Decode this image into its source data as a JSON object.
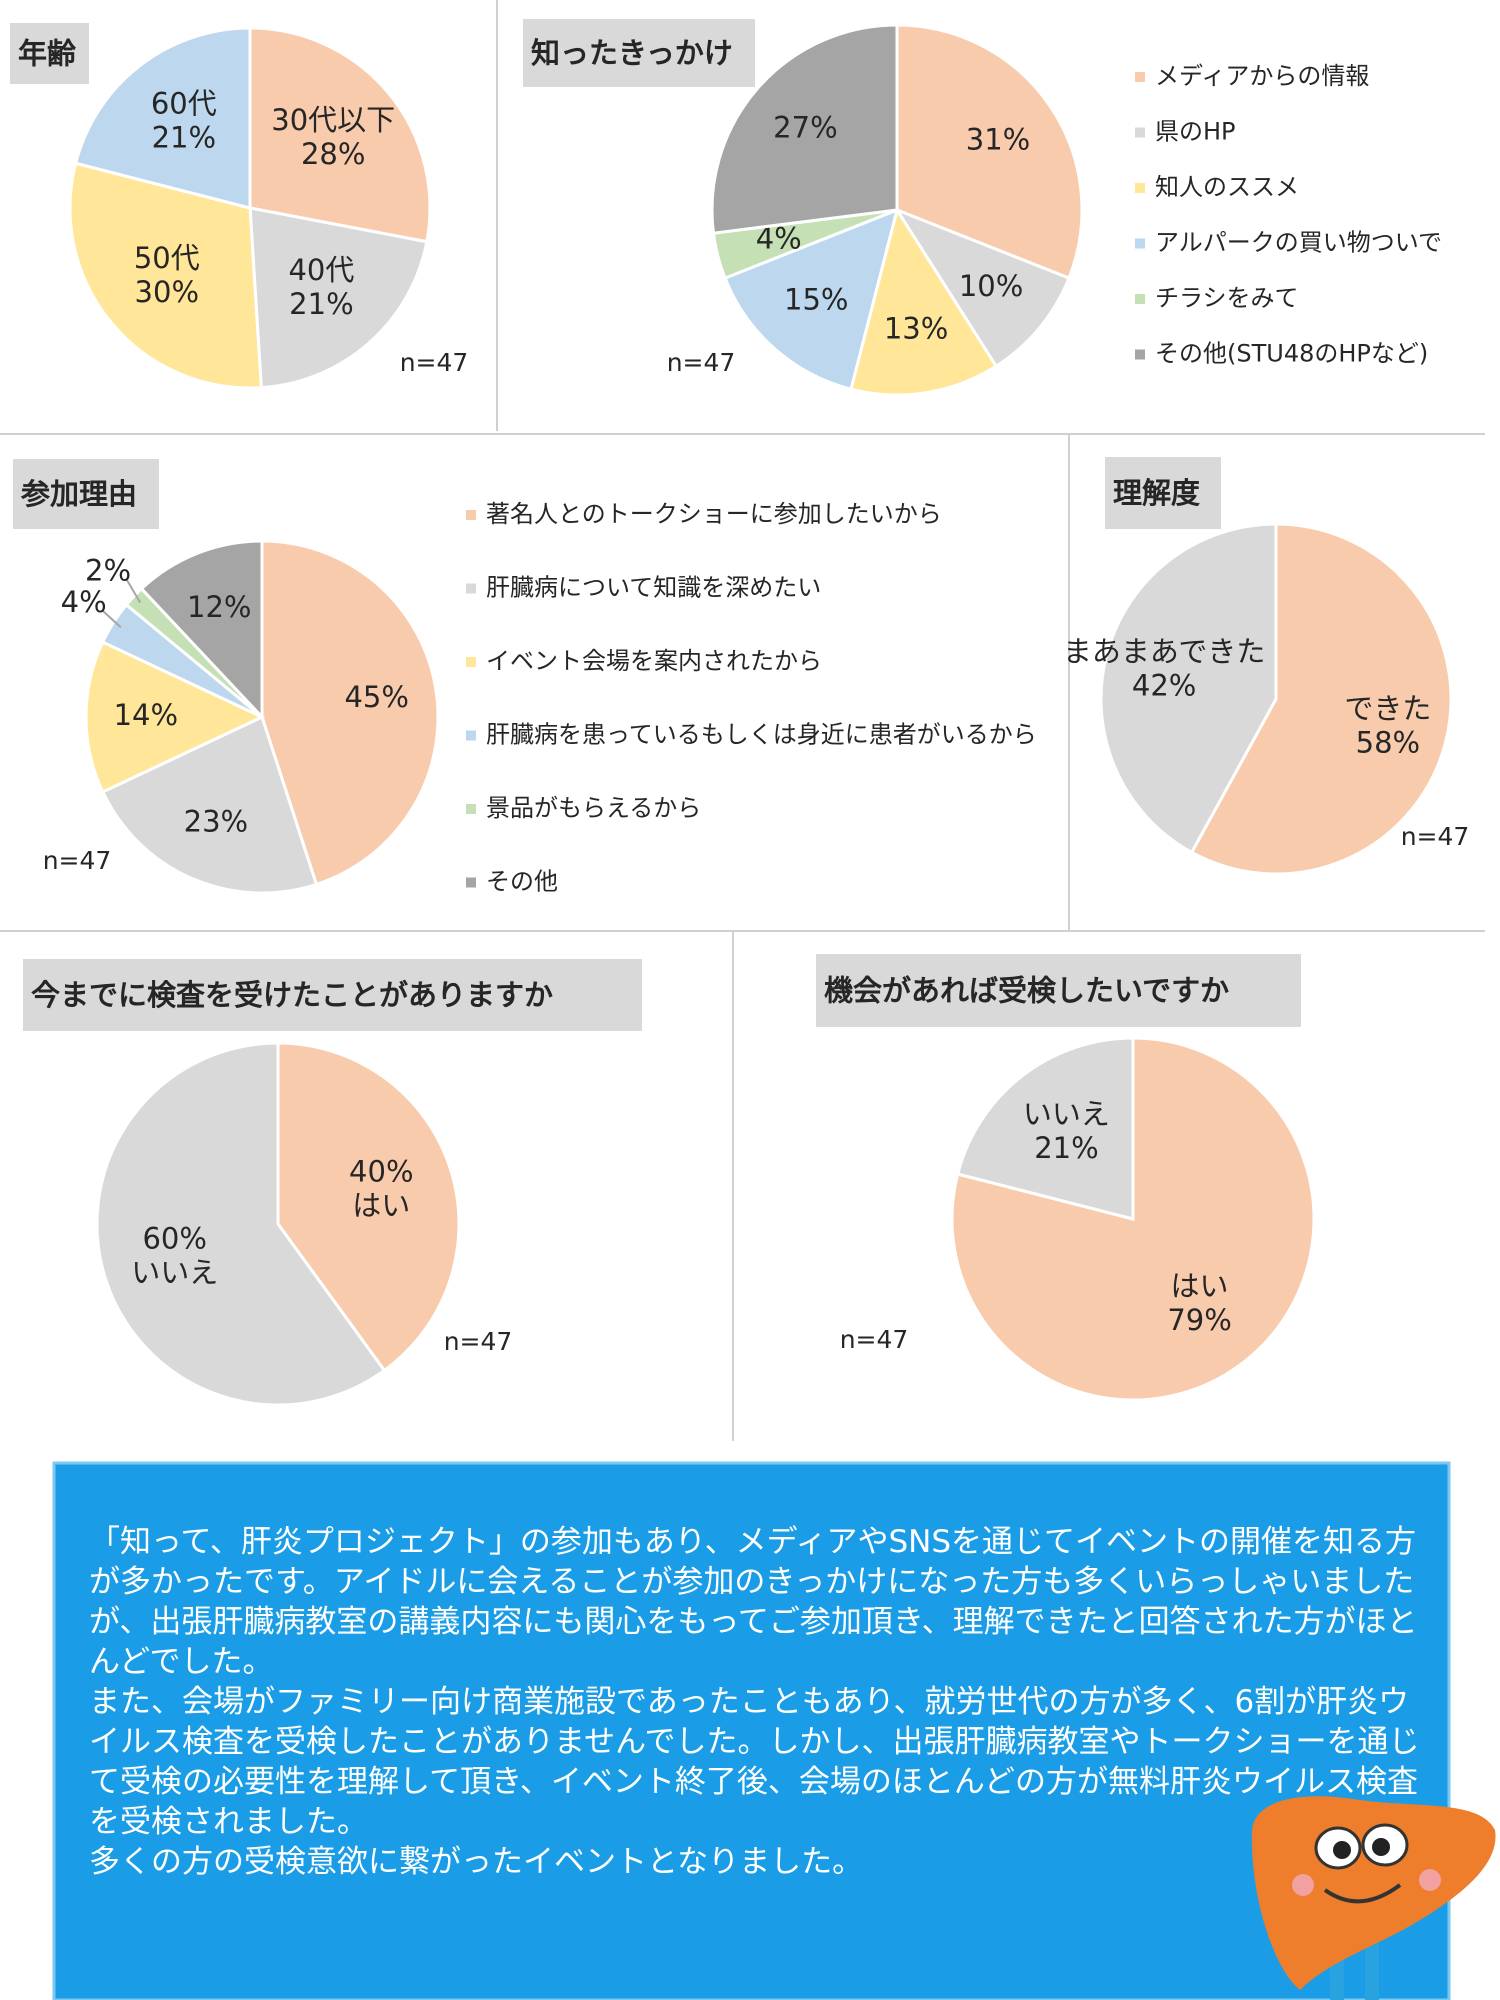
{
  "chart_data": [
    {
      "type": "pie",
      "title": "年齢",
      "note": "n=47",
      "categories": [
        "30代以下",
        "40代",
        "50代",
        "60代"
      ],
      "values": [
        28,
        21,
        30,
        21
      ],
      "value_labels": [
        "28%",
        "21%",
        "30%",
        "21%"
      ],
      "colors": [
        "#f8cbad",
        "#d9d9d9",
        "#ffe699",
        "#bdd7ee"
      ]
    },
    {
      "type": "pie",
      "title": "知ったきっかけ",
      "note": "n=47",
      "legend": "right",
      "categories": [
        "メディアからの情報",
        "県のHP",
        "知人のススメ",
        "アルパークの買い物ついで",
        "チラシをみて",
        "その他(STU48のHPなど)"
      ],
      "values": [
        31,
        10,
        13,
        15,
        4,
        27
      ],
      "value_labels": [
        "31%",
        "10%",
        "13%",
        "15%",
        "4%",
        "27%"
      ],
      "colors": [
        "#f8cbad",
        "#d9d9d9",
        "#ffe699",
        "#bdd7ee",
        "#c5e0b4",
        "#a5a5a5"
      ]
    },
    {
      "type": "pie",
      "title": "参加理由",
      "note": "n=47",
      "legend": "right",
      "categories": [
        "著名人とのトークショーに参加したいから",
        "肝臓病について知識を深めたい",
        "イベント会場を案内されたから",
        "肝臓病を患っているもしくは身近に患者がいるから",
        "景品がもらえるから",
        "その他"
      ],
      "values": [
        45,
        23,
        14,
        4,
        2,
        12
      ],
      "value_labels": [
        "45%",
        "23%",
        "14%",
        "4%",
        "2%",
        "12%"
      ],
      "colors": [
        "#f8cbad",
        "#d9d9d9",
        "#ffe699",
        "#bdd7ee",
        "#c5e0b4",
        "#a5a5a5"
      ]
    },
    {
      "type": "pie",
      "title": "理解度",
      "note": "n=47",
      "categories": [
        "できた",
        "まあまあできた"
      ],
      "values": [
        58,
        42
      ],
      "value_labels": [
        "58%",
        "42%"
      ],
      "colors": [
        "#f8cbad",
        "#d9d9d9"
      ]
    },
    {
      "type": "pie",
      "title": "今までに検査を受けたことがありますか",
      "note": "n=47",
      "categories": [
        "はい",
        "いいえ"
      ],
      "values": [
        40,
        60
      ],
      "value_labels": [
        "40%",
        "60%"
      ],
      "colors": [
        "#f8cbad",
        "#d9d9d9"
      ]
    },
    {
      "type": "pie",
      "title": "機会があれば受検したいですか",
      "note": "n=47",
      "categories": [
        "はい",
        "いいえ"
      ],
      "values": [
        79,
        21
      ],
      "value_labels": [
        "79%",
        "21%"
      ],
      "colors": [
        "#f8cbad",
        "#d9d9d9"
      ]
    }
  ],
  "summary": {
    "paragraphs": [
      "「知って、肝炎プロジェクト」の参加もあり、メディアやSNSを通じてイベントの開催を知る方が多かったです。アイドルに会えることが参加のきっかけになった方も多くいらっしゃいましたが、出張肝臓病教室の講義内容にも関心をもってご参加頂き、理解できたと回答された方がほとんどでした。",
      "また、会場がファミリー向け商業施設であったこともあり、就労世代の方が多く、6割が肝炎ウイルス検査を受検したことがありませんでした。しかし、出張肝臓病教室やトークショーを通じて受検の必要性を理解して頂き、イベント終了後、会場のほとんどの方が無料肝炎ウイルス検査を受検されました。",
      "多くの方の受検意欲に繋がったイベントとなりました。"
    ]
  }
}
